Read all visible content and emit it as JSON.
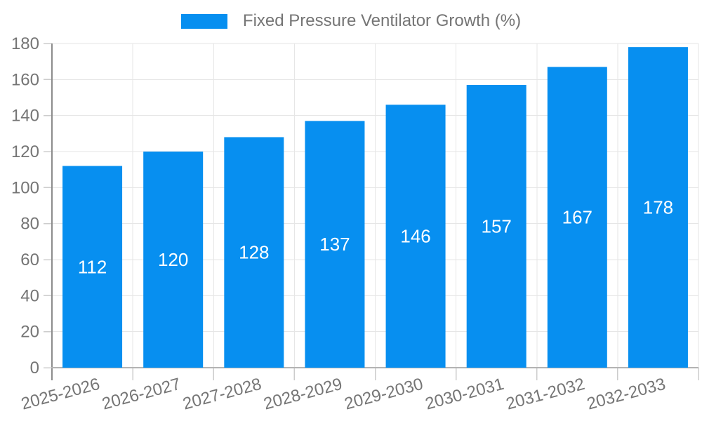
{
  "legend": {
    "label": "Fixed Pressure Ventilator Growth (%)"
  },
  "chart_data": {
    "type": "bar",
    "title": "",
    "categories": [
      "2025-2026",
      "2026-2027",
      "2027-2028",
      "2028-2029",
      "2029-2030",
      "2030-2031",
      "2031-2032",
      "2032-2033"
    ],
    "series": [
      {
        "name": "Fixed Pressure Ventilator Growth (%)",
        "values": [
          112,
          120,
          128,
          137,
          146,
          157,
          167,
          178
        ],
        "color": "#078ff0"
      }
    ],
    "value_labels": [
      "112",
      "120",
      "128",
      "137",
      "146",
      "157",
      "167",
      "178"
    ],
    "value_labels_position": "inside-middle",
    "xlabel": "",
    "ylabel": "",
    "ylim": [
      0,
      180
    ],
    "yticks": [
      0,
      20,
      40,
      60,
      80,
      100,
      120,
      140,
      160,
      180
    ],
    "grid": true,
    "legend_position": "top-center",
    "x_tick_rotation_deg": -15
  },
  "colors": {
    "bar": "#078ff0",
    "bar_label_text": "#ffffff",
    "axis_text": "#757575",
    "gridline": "#e6e6e6",
    "tick_mark": "#cccccc",
    "y_axis_line": "#8c8c8c",
    "x_axis_line": "#b3b3b3",
    "background": "#ffffff"
  }
}
